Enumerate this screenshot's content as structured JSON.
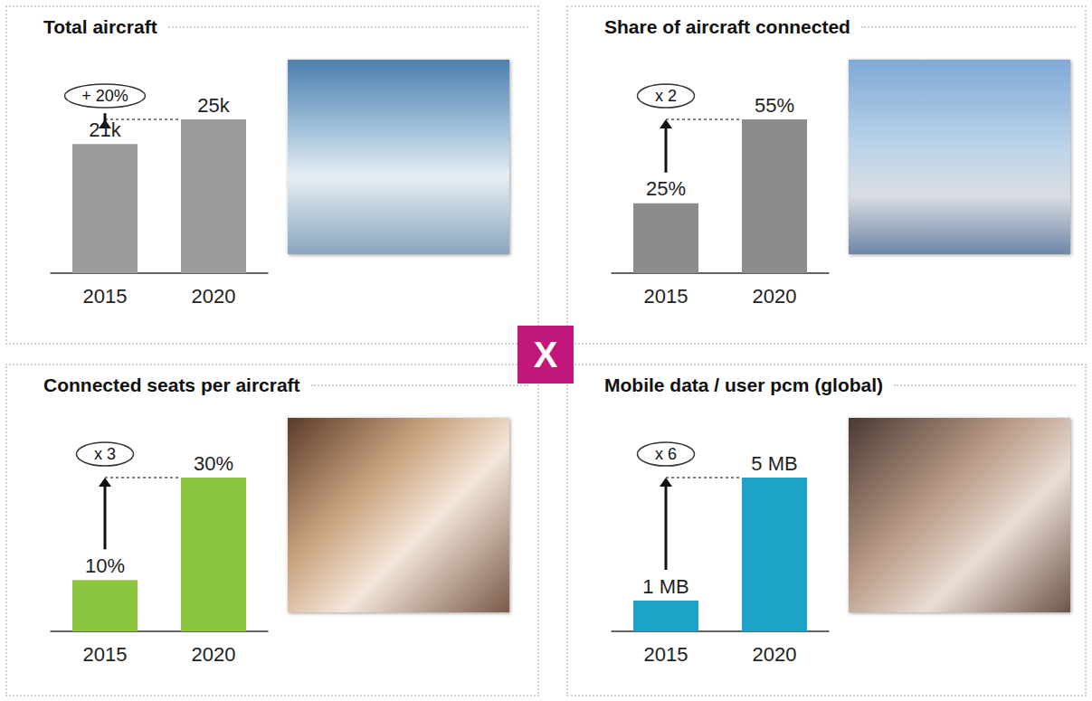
{
  "chart_data": [
    {
      "type": "bar",
      "title": "Total aircraft",
      "categories": [
        "2015",
        "2020"
      ],
      "values": [
        21,
        25
      ],
      "value_labels": [
        "21k",
        "25k"
      ],
      "color": "#9b9b9b",
      "ylim": [
        0,
        25
      ],
      "tick_labels": false,
      "grid": false,
      "data_labels": true,
      "annotation": "+ 20%"
    },
    {
      "type": "bar",
      "title": "Share of aircraft connected",
      "categories": [
        "2015",
        "2020"
      ],
      "values": [
        25,
        55
      ],
      "value_labels": [
        "25%",
        "55%"
      ],
      "color": "#8c8c8c",
      "ylim": [
        0,
        55
      ],
      "tick_labels": false,
      "grid": false,
      "data_labels": true,
      "annotation": "x 2"
    },
    {
      "type": "bar",
      "title": "Connected seats per aircraft",
      "categories": [
        "2015",
        "2020"
      ],
      "values": [
        10,
        30
      ],
      "value_labels": [
        "10%",
        "30%"
      ],
      "color": "#8cc63f",
      "ylim": [
        0,
        30
      ],
      "tick_labels": false,
      "grid": false,
      "data_labels": true,
      "annotation": "x 3"
    },
    {
      "type": "bar",
      "title": "Mobile data / user pcm (global)",
      "categories": [
        "2015",
        "2020"
      ],
      "values": [
        1,
        5
      ],
      "value_labels": [
        "1 MB",
        "5 MB"
      ],
      "color": "#1ea3c8",
      "ylim": [
        0,
        5
      ],
      "tick_labels": false,
      "grid": false,
      "data_labels": true,
      "annotation": "x 6"
    }
  ],
  "operator": "X"
}
